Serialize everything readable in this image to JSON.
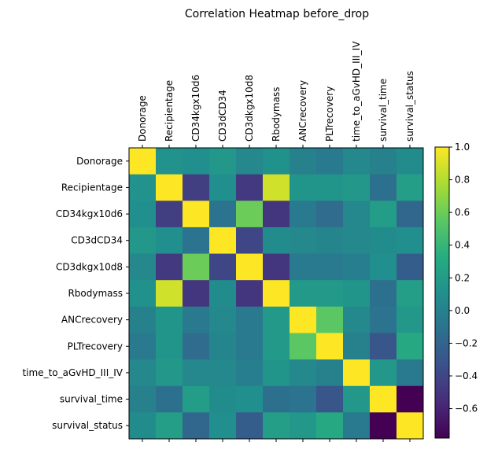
{
  "chart_data": {
    "type": "heatmap",
    "title": "Correlation Heatmap before_drop",
    "labels": [
      "Donorage",
      "Recipientage",
      "CD34kgx10d6",
      "CD3dCD34",
      "CD3dkgx10d8",
      "Rbodymass",
      "ANCrecovery",
      "PLTrecovery",
      "time_to_aGvHD_III_IV",
      "survival_time",
      "survival_status"
    ],
    "matrix": [
      [
        1.0,
        0.13,
        0.1,
        0.16,
        0.05,
        0.12,
        0.0,
        -0.05,
        0.05,
        0.0,
        0.08
      ],
      [
        0.13,
        1.0,
        -0.45,
        0.1,
        -0.48,
        0.88,
        0.15,
        0.15,
        0.17,
        -0.12,
        0.22
      ],
      [
        0.1,
        -0.45,
        1.0,
        -0.1,
        0.6,
        -0.5,
        -0.05,
        -0.15,
        0.05,
        0.2,
        -0.18
      ],
      [
        0.16,
        0.1,
        -0.1,
        1.0,
        -0.4,
        0.08,
        0.05,
        0.03,
        0.05,
        0.08,
        0.1
      ],
      [
        0.05,
        -0.48,
        0.6,
        -0.4,
        1.0,
        -0.5,
        -0.05,
        -0.05,
        -0.02,
        0.1,
        -0.25
      ],
      [
        0.12,
        0.88,
        -0.5,
        0.08,
        -0.5,
        1.0,
        0.18,
        0.18,
        0.15,
        -0.12,
        0.22
      ],
      [
        0.0,
        0.15,
        -0.05,
        0.05,
        -0.05,
        0.18,
        1.0,
        0.55,
        0.05,
        -0.1,
        0.17
      ],
      [
        -0.05,
        0.15,
        -0.15,
        0.03,
        -0.05,
        0.18,
        0.55,
        1.0,
        0.0,
        -0.3,
        0.3
      ],
      [
        0.05,
        0.17,
        0.05,
        0.05,
        -0.02,
        0.15,
        0.05,
        0.0,
        1.0,
        0.17,
        -0.05
      ],
      [
        0.0,
        -0.12,
        0.2,
        0.08,
        0.1,
        -0.12,
        -0.1,
        -0.3,
        0.17,
        1.0,
        -0.78
      ],
      [
        0.08,
        0.22,
        -0.18,
        0.1,
        -0.25,
        0.22,
        0.17,
        0.3,
        -0.05,
        -0.78,
        1.0
      ]
    ],
    "colormap": "viridis",
    "vmin": -0.78,
    "vmax": 1.0,
    "colorbar_ticks": [
      -0.6,
      -0.4,
      -0.2,
      0.0,
      0.2,
      0.4,
      0.6,
      0.8,
      1.0
    ],
    "colorbar_tick_labels": [
      "−0.6",
      "−0.4",
      "−0.2",
      "0.0",
      "0.2",
      "0.4",
      "0.6",
      "0.8",
      "1.0"
    ],
    "colorbar_position": "right",
    "x_tick_position": "top",
    "grid": false
  }
}
